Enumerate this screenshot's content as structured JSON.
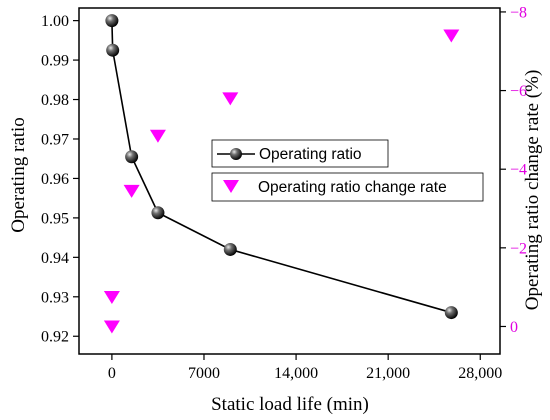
{
  "chart_data": {
    "type": "line+scatter",
    "xlabel": "Static load life (min)",
    "ylabel_left": "Operating ratio",
    "ylabel_right": "Operating ratio change rate (%)",
    "x_ticks": [
      "0",
      "7000",
      "14,000",
      "21,000",
      "28,000"
    ],
    "x_tick_values": [
      0,
      7000,
      14000,
      21000,
      28000
    ],
    "xlim": [
      -2500,
      29500
    ],
    "y_left_ticks": [
      "0.92",
      "0.93",
      "0.94",
      "0.95",
      "0.96",
      "0.97",
      "0.98",
      "0.99",
      "1.00"
    ],
    "y_left_tick_values": [
      0.92,
      0.93,
      0.94,
      0.95,
      0.96,
      0.97,
      0.98,
      0.99,
      1.0
    ],
    "ylim_left": [
      0.9155,
      1.0032
    ],
    "y_right_ticks": [
      "0",
      "−2",
      "−4",
      "−6",
      "−8"
    ],
    "y_right_tick_values": [
      0,
      -2,
      -4,
      -6,
      -8
    ],
    "ylim_right": [
      0.7,
      -8.1
    ],
    "right_axis_inverted": true,
    "series": [
      {
        "name": "Operating ratio",
        "axis": "left",
        "style": "line-with-spheres",
        "color": "#000000",
        "x": [
          0,
          60,
          1500,
          3500,
          9000,
          25800
        ],
        "y": [
          1.0,
          0.9925,
          0.9655,
          0.9513,
          0.942,
          0.926
        ]
      },
      {
        "name": "Operating ratio change rate",
        "axis": "right",
        "style": "triangle-down-markers",
        "color": "#ff00ff",
        "x": [
          0,
          0,
          1500,
          3500,
          9000,
          25800
        ],
        "y": [
          0,
          -0.75,
          -3.45,
          -4.85,
          -5.8,
          -7.4
        ]
      }
    ],
    "legend_placement": "center-right"
  }
}
